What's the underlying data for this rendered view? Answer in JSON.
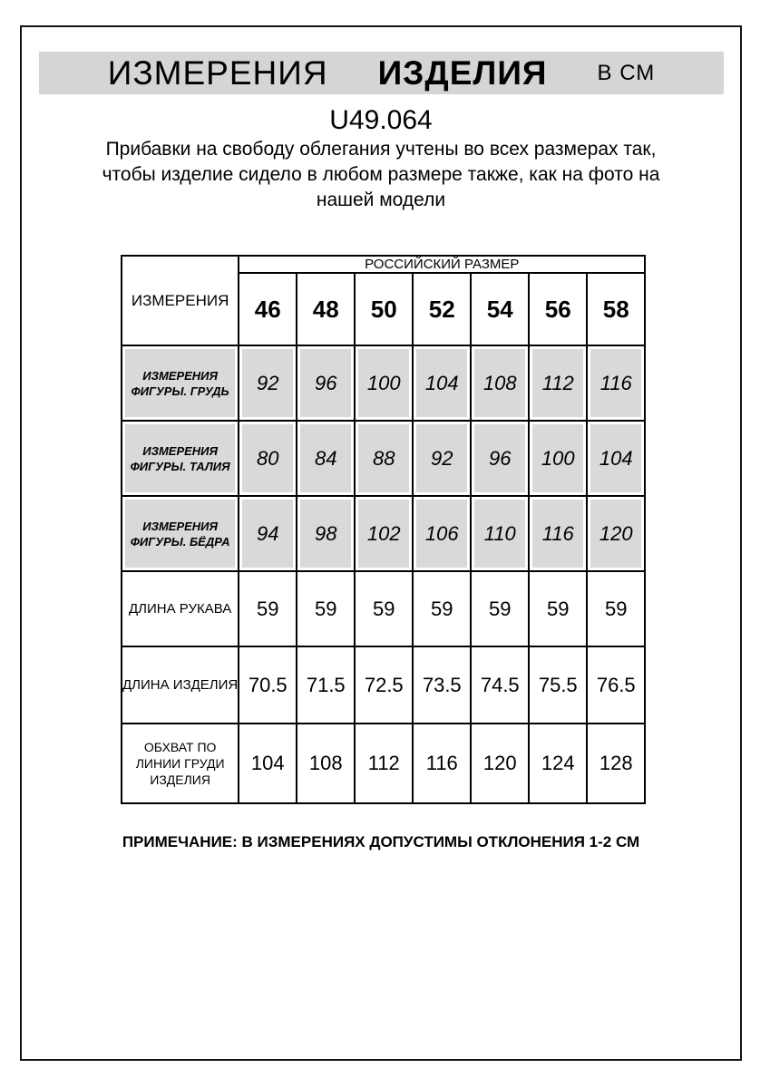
{
  "header": {
    "title_word1": "ИЗМЕРЕНИЯ",
    "title_word2": "ИЗДЕЛИЯ",
    "title_unit": "В СМ",
    "article": "U49.064",
    "description_lines": {
      "0": "Прибавки на свободу облегания учтены во всех размерах так,",
      "1": "чтобы изделие сидело в любом размере также, как на фото на",
      "2": "нашей модели"
    }
  },
  "table": {
    "corner_label": "ИЗМЕРЕНИЯ",
    "size_group_header": "РОССИЙСКИЙ РАЗМЕР",
    "sizes": [
      "46",
      "48",
      "50",
      "52",
      "54",
      "56",
      "58"
    ],
    "rows": [
      {
        "label": "ИЗМЕРЕНИЯ ФИГУРЫ. ГРУДЬ",
        "values": [
          "92",
          "96",
          "100",
          "104",
          "108",
          "112",
          "116"
        ],
        "shaded": true
      },
      {
        "label": "ИЗМЕРЕНИЯ ФИГУРЫ. ТАЛИЯ",
        "values": [
          "80",
          "84",
          "88",
          "92",
          "96",
          "100",
          "104"
        ],
        "shaded": true
      },
      {
        "label": "ИЗМЕРЕНИЯ ФИГУРЫ. БЁДРА",
        "values": [
          "94",
          "98",
          "102",
          "106",
          "110",
          "116",
          "120"
        ],
        "shaded": true
      },
      {
        "label": "ДЛИНА РУКАВА",
        "values": [
          "59",
          "59",
          "59",
          "59",
          "59",
          "59",
          "59"
        ],
        "shaded": false
      },
      {
        "label": "ДЛИНА ИЗДЕЛИЯ",
        "values": [
          "70.5",
          "71.5",
          "72.5",
          "73.5",
          "74.5",
          "75.5",
          "76.5"
        ],
        "shaded": false
      },
      {
        "label": "ОБХВАТ ПО ЛИНИИ ГРУДИ ИЗДЕЛИЯ",
        "values": [
          "104",
          "108",
          "112",
          "116",
          "120",
          "124",
          "128"
        ],
        "shaded": false
      }
    ]
  },
  "footer": {
    "note": "ПРИМЕЧАНИЕ: В ИЗМЕРЕНИЯХ ДОПУСТИМЫ ОТКЛОНЕНИЯ 1-2 СМ"
  },
  "colors": {
    "shaded_row_bg": "#d9d9d9",
    "title_bar_bg": "#d5d5d5",
    "border": "#000000"
  }
}
